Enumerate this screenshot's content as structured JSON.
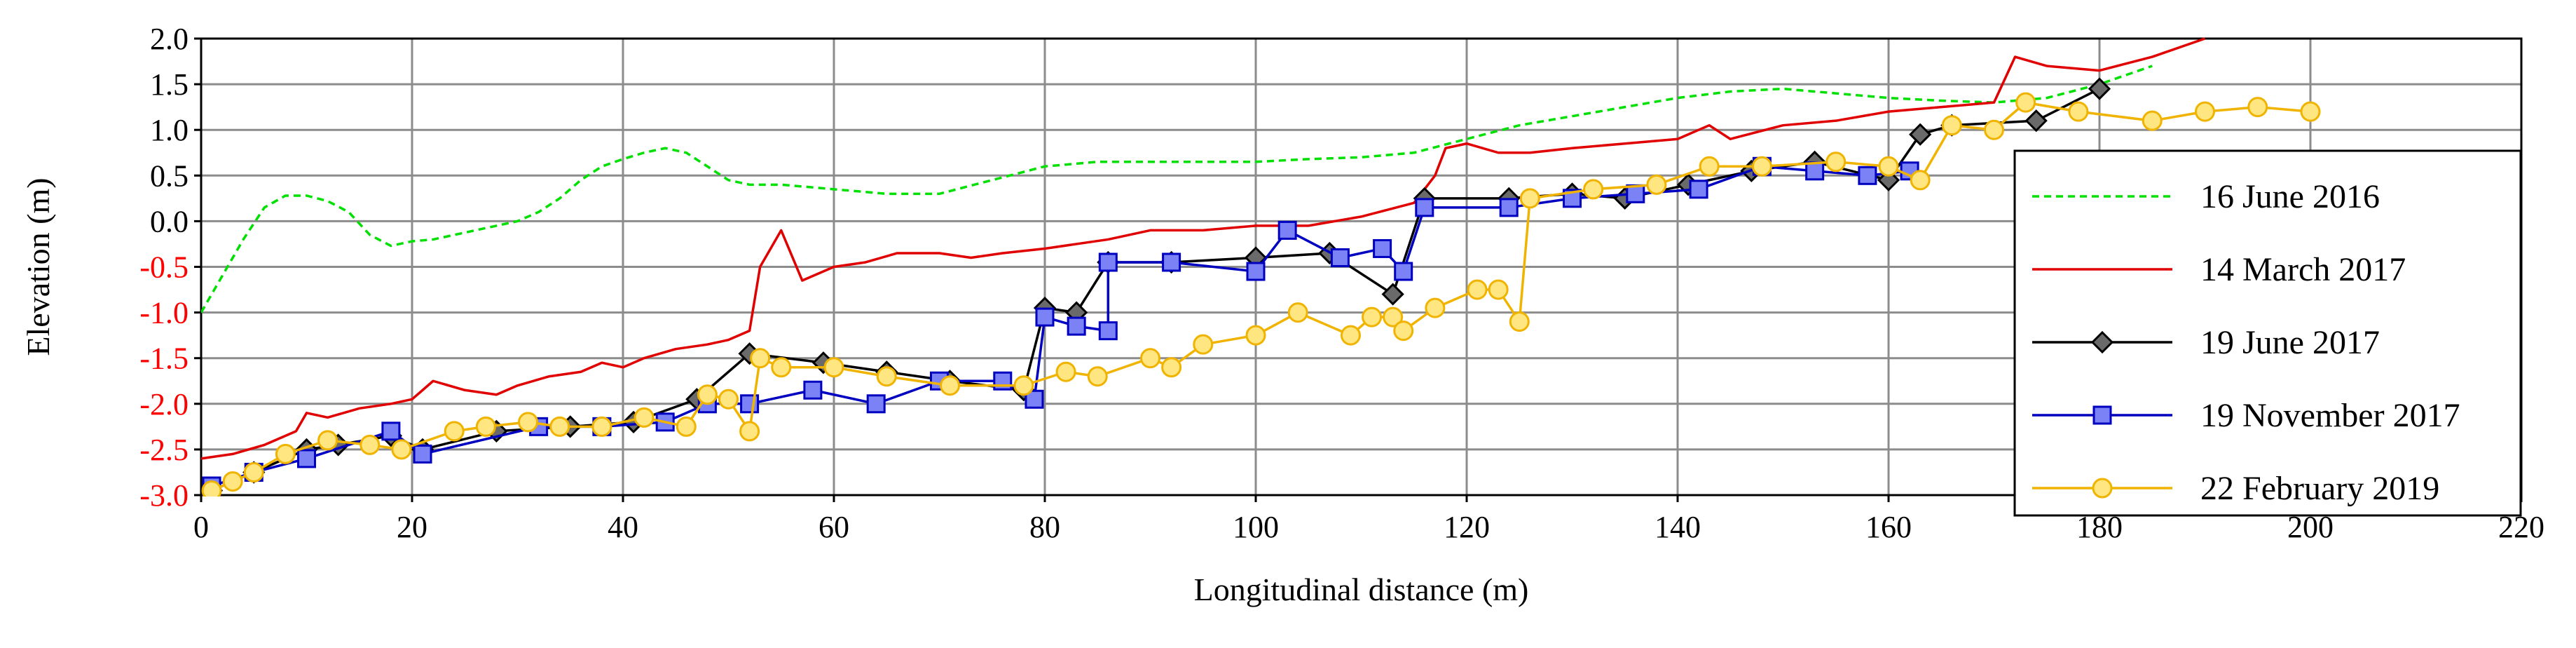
{
  "chart_data": {
    "type": "line",
    "title": "",
    "xlabel": "Longitudinal distance (m)",
    "ylabel": "Elevation (m)",
    "xlim": [
      0,
      220
    ],
    "ylim": [
      -3.0,
      2.0
    ],
    "xticks": [
      0,
      20,
      40,
      60,
      80,
      100,
      120,
      140,
      160,
      180,
      200,
      220
    ],
    "yticks": [
      -3.0,
      -2.5,
      -2.0,
      -1.5,
      -1.0,
      -0.5,
      0.0,
      0.5,
      1.0,
      1.5,
      2.0
    ],
    "xtick_labels": [
      "0",
      "20",
      "40",
      "60",
      "80",
      "100",
      "120",
      "140",
      "160",
      "180",
      "200",
      "220"
    ],
    "ytick_labels": [
      "-3.0",
      "-2.5",
      "-2.0",
      "-1.5",
      "-1.0",
      "-0.5",
      "0.0",
      "0.5",
      "1.0",
      "1.5",
      "2.0"
    ],
    "negative_tick_color": "#ff0000",
    "positive_tick_color": "#000000",
    "grid": true,
    "legend_position": "right",
    "series": [
      {
        "name": "16 June 2016",
        "color": "#00e000",
        "style": "dashed",
        "marker": "none",
        "x": [
          0,
          2,
          4,
          6,
          8,
          10,
          12,
          14,
          16,
          18,
          20,
          22,
          24,
          26,
          28,
          30,
          32,
          34,
          36,
          38,
          40,
          42,
          44,
          46,
          48,
          50,
          52,
          55,
          60,
          65,
          70,
          75,
          80,
          85,
          90,
          95,
          100,
          105,
          110,
          115,
          120,
          125,
          130,
          135,
          140,
          145,
          150,
          155,
          160,
          165,
          170,
          175,
          180,
          185
        ],
        "y": [
          -1.0,
          -0.6,
          -0.2,
          0.15,
          0.28,
          0.28,
          0.22,
          0.1,
          -0.15,
          -0.27,
          -0.22,
          -0.2,
          -0.15,
          -0.1,
          -0.05,
          0.0,
          0.1,
          0.25,
          0.45,
          0.6,
          0.68,
          0.75,
          0.8,
          0.75,
          0.6,
          0.45,
          0.4,
          0.4,
          0.35,
          0.3,
          0.3,
          0.45,
          0.6,
          0.65,
          0.65,
          0.65,
          0.65,
          0.68,
          0.7,
          0.75,
          0.9,
          1.05,
          1.15,
          1.25,
          1.35,
          1.42,
          1.45,
          1.4,
          1.35,
          1.32,
          1.3,
          1.35,
          1.5,
          1.7
        ]
      },
      {
        "name": "14 March 2017",
        "color": "#e00000",
        "style": "solid",
        "marker": "none",
        "x": [
          0,
          3,
          6,
          9,
          10,
          12,
          15,
          18,
          20,
          22,
          25,
          28,
          30,
          33,
          36,
          38,
          40,
          42,
          45,
          48,
          50,
          52,
          53,
          55,
          57,
          60,
          63,
          66,
          70,
          73,
          76,
          80,
          83,
          86,
          90,
          95,
          100,
          105,
          110,
          115,
          117,
          118,
          120,
          123,
          126,
          130,
          135,
          140,
          143,
          145,
          150,
          155,
          160,
          165,
          170,
          172,
          175,
          180,
          185,
          190
        ],
        "y": [
          -2.6,
          -2.55,
          -2.45,
          -2.3,
          -2.1,
          -2.15,
          -2.05,
          -2.0,
          -1.95,
          -1.75,
          -1.85,
          -1.9,
          -1.8,
          -1.7,
          -1.65,
          -1.55,
          -1.6,
          -1.5,
          -1.4,
          -1.35,
          -1.3,
          -1.2,
          -0.5,
          -0.1,
          -0.65,
          -0.5,
          -0.45,
          -0.35,
          -0.35,
          -0.4,
          -0.35,
          -0.3,
          -0.25,
          -0.2,
          -0.1,
          -0.1,
          -0.05,
          -0.05,
          0.05,
          0.2,
          0.5,
          0.8,
          0.85,
          0.75,
          0.75,
          0.8,
          0.85,
          0.9,
          1.05,
          0.9,
          1.05,
          1.1,
          1.2,
          1.25,
          1.3,
          1.8,
          1.7,
          1.65,
          1.8,
          2.0
        ]
      },
      {
        "name": "19 June 2017",
        "color": "#000000",
        "marker_fill": "#6a6a6a",
        "style": "solid",
        "marker": "diamond",
        "x": [
          1,
          5,
          10,
          13,
          18,
          21,
          28,
          35,
          41,
          47,
          52,
          59,
          65,
          71,
          78,
          80,
          83,
          86,
          92,
          100,
          107,
          113,
          116,
          124,
          130,
          135,
          141,
          147,
          153,
          160,
          163,
          166,
          174,
          180
        ],
        "y": [
          -2.95,
          -2.75,
          -2.5,
          -2.45,
          -2.35,
          -2.5,
          -2.3,
          -2.25,
          -2.2,
          -1.95,
          -1.45,
          -1.55,
          -1.65,
          -1.75,
          -1.85,
          -0.95,
          -1.0,
          -0.45,
          -0.45,
          -0.4,
          -0.35,
          -0.8,
          0.25,
          0.25,
          0.3,
          0.25,
          0.4,
          0.55,
          0.65,
          0.45,
          0.95,
          1.05,
          1.1,
          1.45
        ]
      },
      {
        "name": "19 November 2017",
        "color": "#0000c0",
        "marker_fill": "#7a82f5",
        "style": "solid",
        "marker": "square",
        "x": [
          1,
          5,
          10,
          18,
          21,
          32,
          38,
          44,
          48,
          52,
          58,
          64,
          70,
          76,
          79,
          80,
          83,
          86,
          86,
          92,
          100,
          103,
          108,
          112,
          114,
          116,
          124,
          130,
          136,
          142,
          148,
          153,
          158,
          162
        ],
        "y": [
          -2.9,
          -2.75,
          -2.6,
          -2.3,
          -2.55,
          -2.25,
          -2.25,
          -2.2,
          -2.0,
          -2.0,
          -1.85,
          -2.0,
          -1.75,
          -1.75,
          -1.95,
          -1.05,
          -1.15,
          -1.2,
          -0.45,
          -0.45,
          -0.55,
          -0.1,
          -0.4,
          -0.3,
          -0.55,
          0.15,
          0.15,
          0.25,
          0.3,
          0.35,
          0.6,
          0.55,
          0.5,
          0.55
        ]
      },
      {
        "name": "22 February 2019",
        "color": "#f0b400",
        "marker_fill": "#ffe680",
        "style": "solid",
        "marker": "circle",
        "x": [
          1,
          3,
          5,
          8,
          12,
          16,
          19,
          24,
          27,
          31,
          34,
          38,
          42,
          46,
          48,
          50,
          52,
          53,
          55,
          60,
          65,
          71,
          78,
          82,
          85,
          90,
          92,
          95,
          100,
          104,
          109,
          111,
          113,
          114,
          117,
          121,
          123,
          125,
          126,
          132,
          138,
          143,
          148,
          155,
          160,
          163,
          166,
          170,
          173,
          178,
          185,
          190,
          195,
          200
        ],
        "y": [
          -2.95,
          -2.85,
          -2.75,
          -2.55,
          -2.4,
          -2.45,
          -2.5,
          -2.3,
          -2.25,
          -2.2,
          -2.25,
          -2.25,
          -2.15,
          -2.25,
          -1.9,
          -1.95,
          -2.3,
          -1.5,
          -1.6,
          -1.6,
          -1.7,
          -1.8,
          -1.8,
          -1.65,
          -1.7,
          -1.5,
          -1.6,
          -1.35,
          -1.25,
          -1.0,
          -1.25,
          -1.05,
          -1.05,
          -1.2,
          -0.95,
          -0.75,
          -0.75,
          -1.1,
          0.25,
          0.35,
          0.4,
          0.6,
          0.6,
          0.65,
          0.6,
          0.45,
          1.05,
          1.0,
          1.3,
          1.2,
          1.1,
          1.2,
          1.25,
          1.2
        ]
      }
    ]
  }
}
